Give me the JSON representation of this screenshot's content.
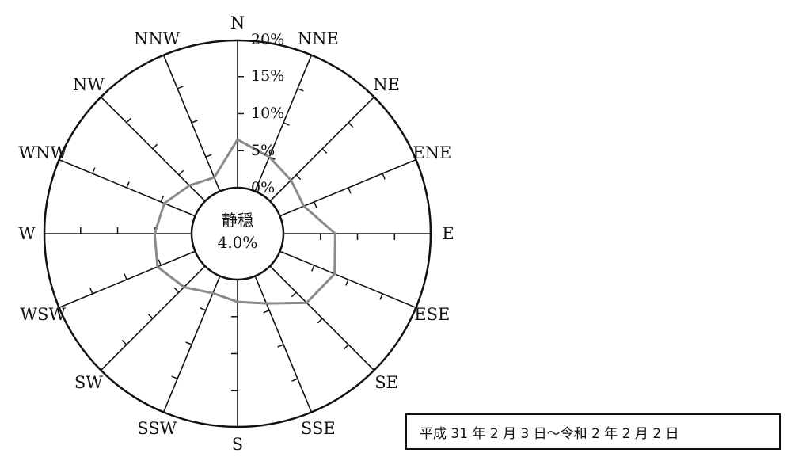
{
  "chart_data": {
    "type": "wind-rose",
    "directions": [
      "N",
      "NNE",
      "NE",
      "ENE",
      "E",
      "ESE",
      "SE",
      "SSE",
      "S",
      "SSW",
      "SW",
      "WSW",
      "W",
      "WNW",
      "NW",
      "NNW"
    ],
    "values": [
      6.5,
      5.0,
      4.0,
      3.5,
      7.0,
      8.0,
      7.0,
      4.0,
      3.0,
      2.5,
      4.0,
      5.5,
      5.0,
      4.5,
      3.0,
      2.0
    ],
    "value_unit": "%",
    "radial_ticks": [
      "0%",
      "5%",
      "10%",
      "15%",
      "20%"
    ],
    "rlim": [
      0,
      20
    ],
    "calm_label": "静穏",
    "calm_value": "4.0%",
    "series_color": "#8a8a8a"
  },
  "period_label": "平成 31 年 2 月 3 日～令和 2 年 2 月 2 日"
}
